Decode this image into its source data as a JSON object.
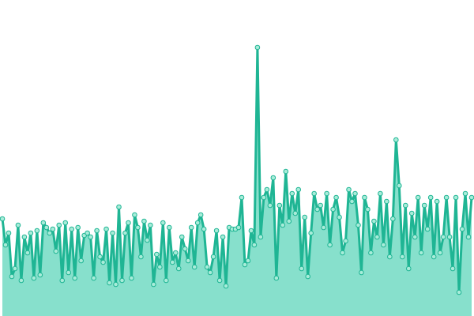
{
  "chart_data": {
    "type": "area",
    "values": [
      123,
      90,
      105,
      50,
      60,
      115,
      45,
      100,
      80,
      105,
      48,
      108,
      52,
      118,
      112,
      105,
      110,
      82,
      115,
      45,
      118,
      55,
      110,
      48,
      112,
      70,
      102,
      105,
      100,
      48,
      108,
      75,
      68,
      110,
      42,
      105,
      40,
      138,
      45,
      105,
      118,
      48,
      128,
      112,
      75,
      120,
      96,
      115,
      40,
      78,
      62,
      118,
      45,
      112,
      68,
      80,
      60,
      100,
      85,
      70,
      112,
      62,
      118,
      128,
      110,
      62,
      55,
      75,
      108,
      45,
      100,
      38,
      112,
      110,
      110,
      112,
      150,
      65,
      70,
      108,
      90,
      340,
      100,
      150,
      160,
      140,
      175,
      48,
      140,
      115,
      183,
      120,
      155,
      130,
      160,
      60,
      125,
      50,
      105,
      155,
      135,
      140,
      112,
      155,
      90,
      135,
      150,
      125,
      80,
      95,
      160,
      145,
      155,
      115,
      55,
      150,
      135,
      80,
      120,
      100,
      155,
      90,
      145,
      75,
      123,
      223,
      165,
      75,
      140,
      60,
      130,
      100,
      150,
      80,
      140,
      110,
      150,
      75,
      145,
      80,
      100,
      150,
      100,
      60,
      150,
      30,
      110,
      155,
      100,
      150
    ],
    "ylim": [
      0,
      400
    ],
    "line_color": "#1fb594",
    "fill_color": "#87e0cc",
    "marker_fill": "#a8ecd9"
  }
}
